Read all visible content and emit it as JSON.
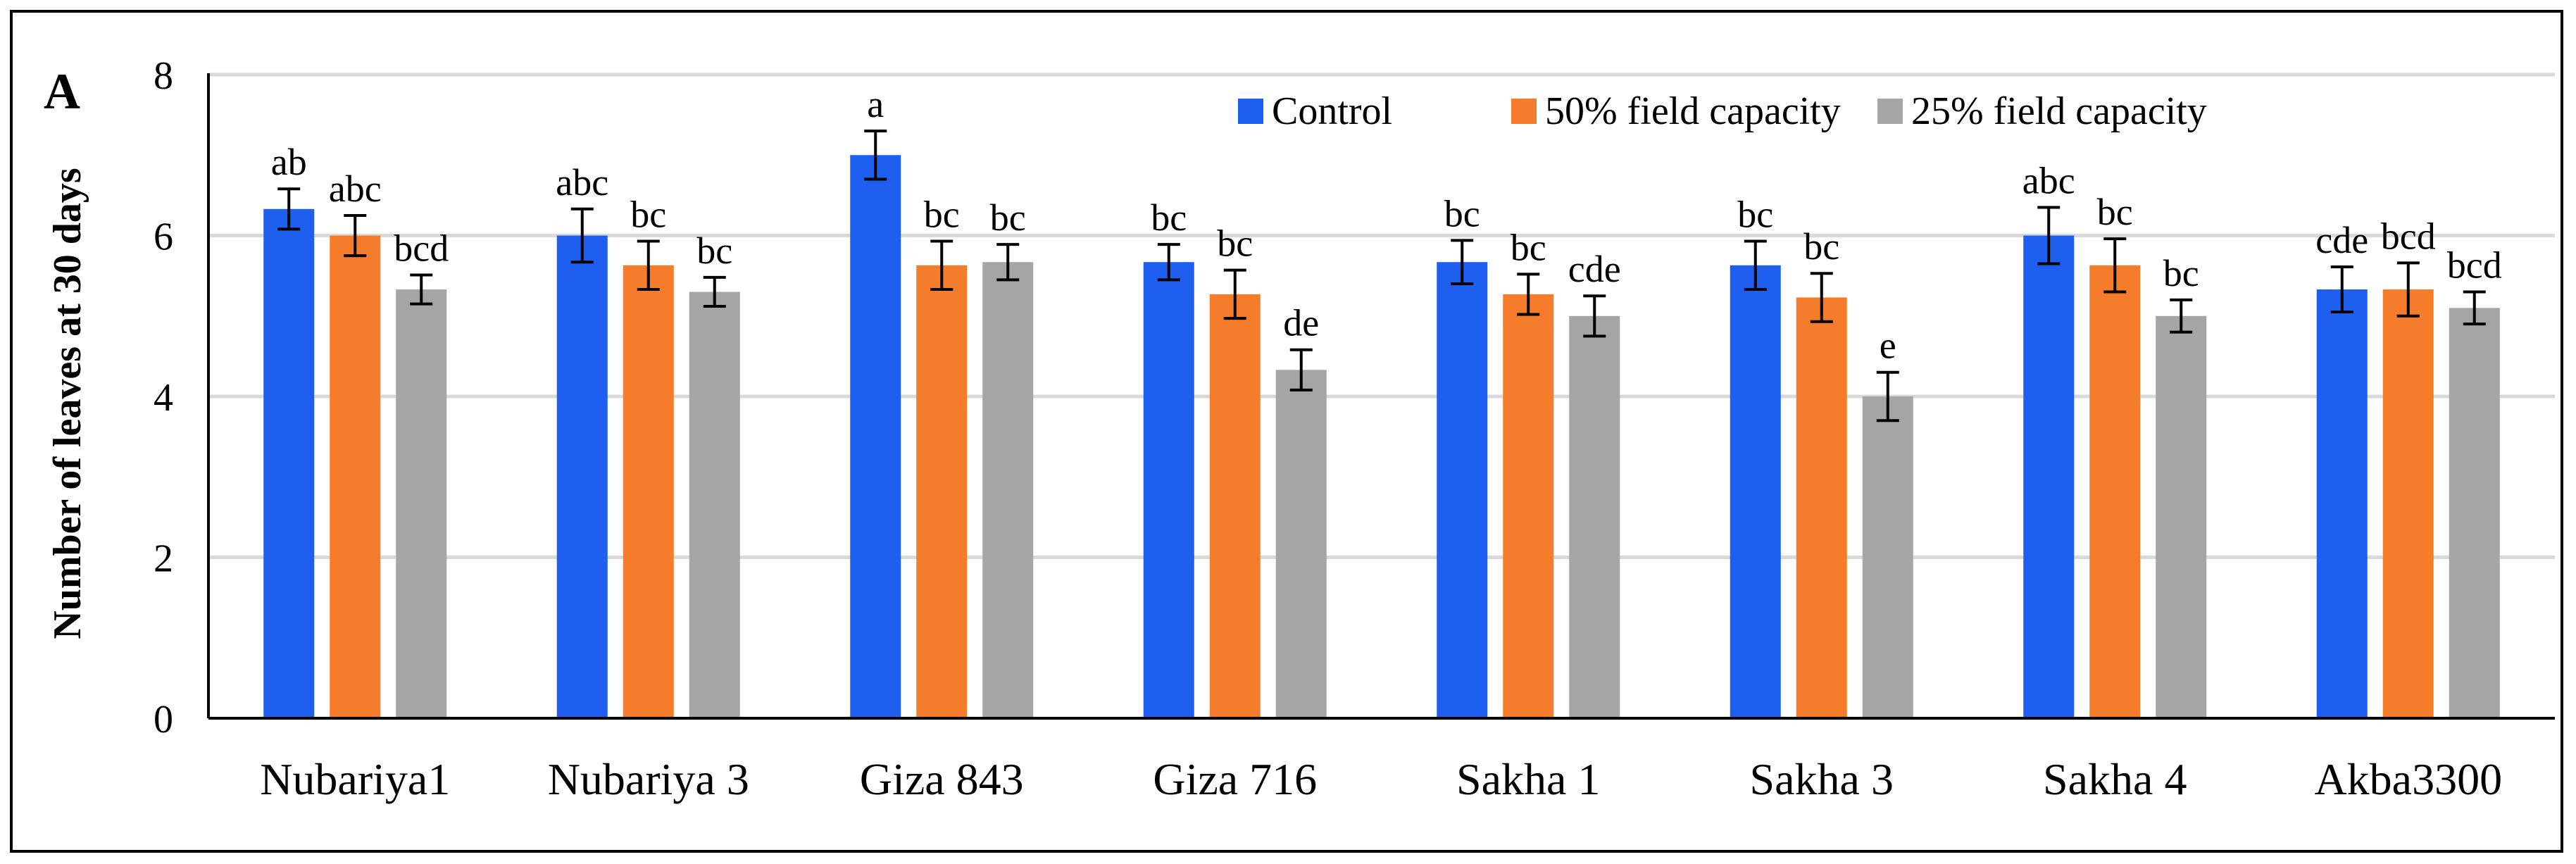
{
  "panel_label": "A",
  "chart_data": {
    "type": "bar",
    "title": "",
    "xlabel": "",
    "ylabel": "Number of leaves at 30 days",
    "ylim": [
      0,
      8
    ],
    "yticks": [
      "0",
      "2",
      "4",
      "6",
      "8"
    ],
    "grid": true,
    "legend_position": "top-right",
    "categories": [
      "Nubariya1",
      "Nubariya 3",
      "Giza 843",
      "Giza 716",
      "Sakha 1",
      "Sakha 3",
      "Sakha 4",
      "Akba3300"
    ],
    "series": [
      {
        "name": "Control",
        "color": "#1F5FF0",
        "values": [
          6.33,
          6.0,
          7.0,
          5.67,
          5.67,
          5.63,
          6.0,
          5.33
        ],
        "errors": [
          0.25,
          0.33,
          0.3,
          0.22,
          0.27,
          0.3,
          0.35,
          0.28
        ],
        "labels": [
          "ab",
          "abc",
          "a",
          "bc",
          "bc",
          "bc",
          "abc",
          "cde"
        ]
      },
      {
        "name": "50% field capacity",
        "color": "#F47C2A",
        "values": [
          6.0,
          5.63,
          5.63,
          5.27,
          5.27,
          5.23,
          5.63,
          5.33
        ],
        "errors": [
          0.25,
          0.3,
          0.3,
          0.3,
          0.25,
          0.3,
          0.33,
          0.33
        ],
        "labels": [
          "abc",
          "bc",
          "bc",
          "bc",
          "bc",
          "bc",
          "bc",
          "bcd"
        ]
      },
      {
        "name": "25% field capacity",
        "color": "#A5A5A5",
        "values": [
          5.33,
          5.3,
          5.67,
          4.33,
          5.0,
          4.0,
          5.0,
          5.1
        ],
        "errors": [
          0.18,
          0.18,
          0.22,
          0.25,
          0.25,
          0.3,
          0.2,
          0.2
        ],
        "labels": [
          "bcd",
          "bc",
          "bc",
          "de",
          "cde",
          "e",
          "bc",
          "bcd"
        ]
      }
    ]
  }
}
